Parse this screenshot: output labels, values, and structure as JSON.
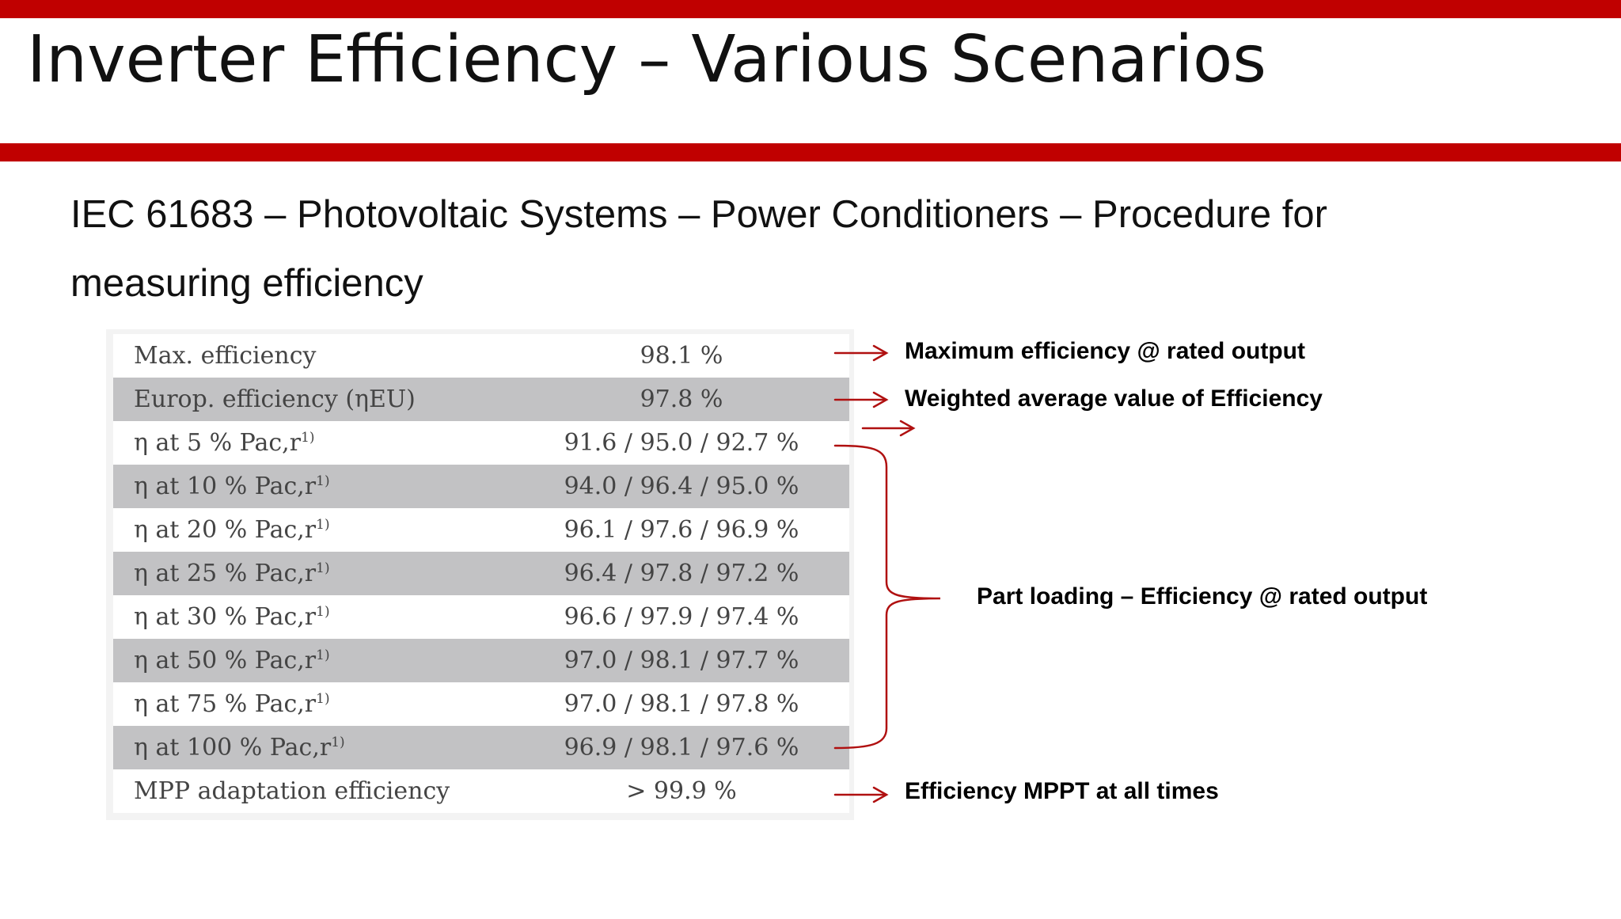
{
  "slide": {
    "title": "Inverter Efficiency – Various Scenarios",
    "subtitle": "IEC 61683 – Photovoltaic Systems – Power Conditioners – Procedure for measuring efficiency"
  },
  "colors": {
    "accent": "#c00000",
    "row_shade": "#c2c2c4",
    "annotation": "#b01010"
  },
  "table": {
    "rows": [
      {
        "label": "Max. efficiency",
        "sup": "",
        "value": "98.1 %"
      },
      {
        "label": "Europ. efficiency (ηEU)",
        "sup": "",
        "value": "97.8 %"
      },
      {
        "label": "η at 5 % Pac,r",
        "sup": "1)",
        "value": "91.6 / 95.0 / 92.7 %"
      },
      {
        "label": "η at 10 % Pac,r",
        "sup": "1)",
        "value": "94.0 / 96.4 / 95.0 %"
      },
      {
        "label": "η at 20 % Pac,r",
        "sup": "1)",
        "value": "96.1 / 97.6 / 96.9 %"
      },
      {
        "label": "η at 25 % Pac,r",
        "sup": "1)",
        "value": "96.4 / 97.8 / 97.2 %"
      },
      {
        "label": "η at 30 % Pac,r",
        "sup": "1)",
        "value": "96.6 / 97.9 / 97.4 %"
      },
      {
        "label": "η at 50 % Pac,r",
        "sup": "1)",
        "value": "97.0 / 98.1 / 97.7 %"
      },
      {
        "label": "η at 75 % Pac,r",
        "sup": "1)",
        "value": "97.0 / 98.1 / 97.8 %"
      },
      {
        "label": "η at 100 % Pac,r",
        "sup": "1)",
        "value": "96.9 / 98.1 / 97.6 %"
      },
      {
        "label": "MPP adaptation efficiency",
        "sup": "",
        "value": "> 99.9 %"
      }
    ]
  },
  "annotations": {
    "max_eff": "Maximum efficiency @ rated output",
    "weighted": "Weighted average value of Efficiency",
    "part_loading": "Part loading – Efficiency @ rated output",
    "mppt": "Efficiency MPPT at all times"
  }
}
